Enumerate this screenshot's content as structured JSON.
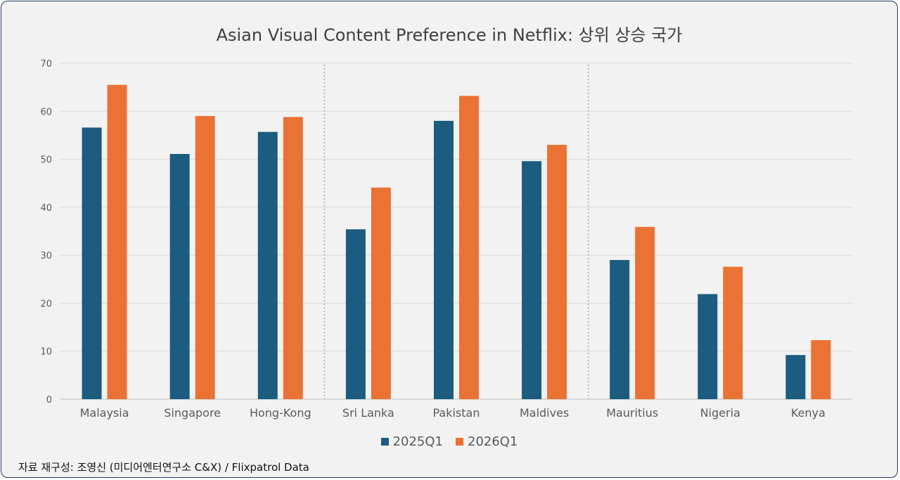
{
  "chart_data": {
    "type": "bar",
    "title": "Asian Visual Content Preference in Netflix: 상위 상승 국가",
    "categories": [
      "Malaysia",
      "Singapore",
      "Hong-Kong",
      "Sri Lanka",
      "Pakistan",
      "Maldives",
      "Mauritius",
      "Nigeria",
      "Kenya"
    ],
    "series": [
      {
        "name": "2025Q1",
        "color": "#1b5c80",
        "values": [
          56.6,
          51.1,
          55.7,
          35.4,
          58.0,
          49.6,
          29.0,
          21.9,
          9.2
        ]
      },
      {
        "name": "2026Q1",
        "color": "#ea7234",
        "values": [
          65.5,
          59.0,
          58.8,
          44.1,
          63.2,
          53.0,
          35.9,
          27.6,
          12.3
        ]
      }
    ],
    "ylim": [
      0,
      70
    ],
    "yticks": [
      0,
      10,
      20,
      30,
      40,
      50,
      60,
      70
    ],
    "grid": true,
    "legend_position": "bottom",
    "group_separators_after": [
      2,
      5
    ]
  },
  "source_text": "자료 재구성: 조영신 (미디어엔터연구소 C&X) / Flixpatrol Data"
}
